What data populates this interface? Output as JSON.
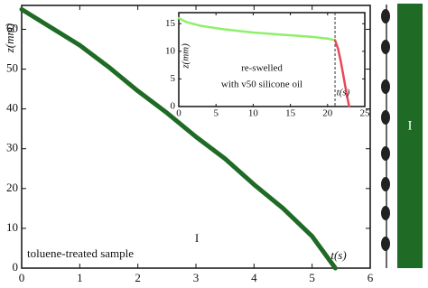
{
  "chart_data": [
    {
      "type": "line",
      "xlabel": "t(s)",
      "ylabel": "z(mm)",
      "annotations": [
        "toluene-treated sample",
        "I"
      ],
      "xlim": [
        0,
        6
      ],
      "ylim": [
        0,
        66
      ],
      "xticks": [
        0,
        1,
        2,
        3,
        4,
        5,
        6
      ],
      "yticks": [
        0,
        10,
        20,
        30,
        40,
        50,
        60
      ],
      "series": [
        {
          "color": "#1f6b26",
          "x": [
            0,
            0.5,
            1,
            1.5,
            2,
            2.5,
            3,
            3.5,
            4,
            4.5,
            5,
            5.4
          ],
          "values": [
            65,
            60.5,
            56,
            50.5,
            44.5,
            39,
            33,
            27.5,
            21,
            15,
            8,
            0
          ]
        }
      ]
    },
    {
      "type": "line",
      "xlabel": "t(s)",
      "ylabel": "z(mm)",
      "annotations": [
        "re-swelled",
        "with v50 silicone oil"
      ],
      "xlim": [
        0,
        25
      ],
      "ylim": [
        0,
        17
      ],
      "xticks": [
        0,
        5,
        10,
        15,
        20,
        25
      ],
      "yticks": [
        0,
        5,
        10,
        15
      ],
      "vline": 21,
      "series": [
        {
          "color": "#8ef06a",
          "x": [
            0,
            1,
            3,
            6,
            10,
            14,
            18,
            20,
            21
          ],
          "values": [
            16,
            15.3,
            14.6,
            14,
            13.4,
            13,
            12.6,
            12.3,
            12
          ]
        },
        {
          "color": "#e6495a",
          "x": [
            21,
            21.4,
            21.8,
            22.2,
            22.6,
            22.9
          ],
          "values": [
            12,
            10.5,
            8,
            5,
            2,
            0
          ]
        }
      ]
    }
  ],
  "side_panel": {
    "label": "I"
  }
}
